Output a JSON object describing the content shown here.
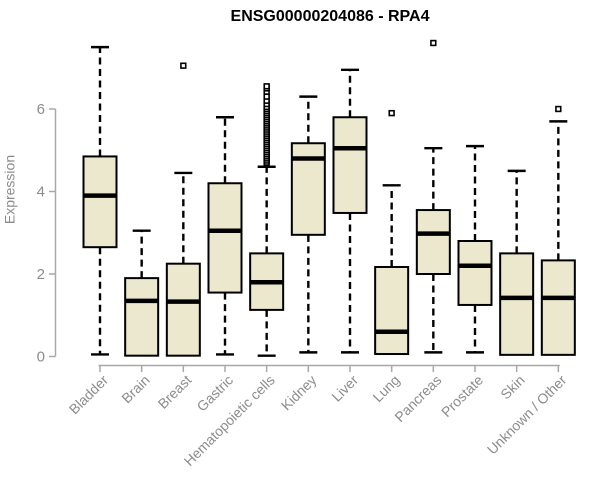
{
  "chart_data": {
    "type": "boxplot",
    "title": "ENSG00000204086 - RPA4",
    "xlabel": "",
    "ylabel": "Expression",
    "ylim": [
      0,
      7.7
    ],
    "yticks": [
      0,
      2,
      4,
      6
    ],
    "grid": false,
    "legend": "none",
    "outlier_marker": "small-open-square",
    "colors": {
      "box_fill": "#ECE8CD",
      "box_border": "#000000",
      "median": "#000000",
      "whisker": "#000000",
      "axis_line": "#A8A8A8",
      "axis_text": "#8C8C8C",
      "title_text": "#000000",
      "outlier_fill": "#FFFFFF",
      "outlier_border": "#000000"
    },
    "categories": [
      "Bladder",
      "Brain",
      "Breast",
      "Gastric",
      "Hematopoietic cells",
      "Kidney",
      "Liver",
      "Lung",
      "Pancreas",
      "Prostate",
      "Skin",
      "Unknown / Other"
    ],
    "series": [
      {
        "name": "Bladder",
        "min": 0.05,
        "q1": 2.65,
        "median": 3.9,
        "q3": 4.85,
        "max": 7.5,
        "outliers": []
      },
      {
        "name": "Brain",
        "min": 0.0,
        "q1": 0.02,
        "median": 1.35,
        "q3": 1.9,
        "max": 3.05,
        "outliers": []
      },
      {
        "name": "Breast",
        "min": 0.0,
        "q1": 0.02,
        "median": 1.33,
        "q3": 2.25,
        "max": 4.45,
        "outliers": [
          7.05
        ]
      },
      {
        "name": "Gastric",
        "min": 0.05,
        "q1": 1.55,
        "median": 3.05,
        "q3": 4.2,
        "max": 5.8,
        "outliers": []
      },
      {
        "name": "Hematopoietic cells",
        "min": 0.02,
        "q1": 1.13,
        "median": 1.8,
        "q3": 2.5,
        "max": 4.6,
        "outliers": [
          4.7,
          4.75,
          4.8,
          4.85,
          4.9,
          4.95,
          5.0,
          5.05,
          5.1,
          5.15,
          5.2,
          5.25,
          5.3,
          5.35,
          5.4,
          5.45,
          5.5,
          5.55,
          5.6,
          5.65,
          5.7,
          5.75,
          5.8,
          5.85,
          5.9,
          5.95,
          6.0,
          6.05,
          6.12,
          6.2,
          6.3,
          6.42,
          6.5,
          6.55
        ]
      },
      {
        "name": "Kidney",
        "min": 0.1,
        "q1": 2.95,
        "median": 4.8,
        "q3": 5.17,
        "max": 6.3,
        "outliers": []
      },
      {
        "name": "Liver",
        "min": 0.1,
        "q1": 3.48,
        "median": 5.05,
        "q3": 5.8,
        "max": 6.95,
        "outliers": []
      },
      {
        "name": "Lung",
        "min": 0.05,
        "q1": 0.06,
        "median": 0.6,
        "q3": 2.17,
        "max": 4.15,
        "outliers": [
          5.9
        ]
      },
      {
        "name": "Pancreas",
        "min": 0.1,
        "q1": 2.0,
        "median": 2.98,
        "q3": 3.55,
        "max": 5.05,
        "outliers": [
          7.6
        ]
      },
      {
        "name": "Prostate",
        "min": 0.1,
        "q1": 1.25,
        "median": 2.2,
        "q3": 2.8,
        "max": 5.1,
        "outliers": []
      },
      {
        "name": "Skin",
        "min": 0.04,
        "q1": 0.04,
        "median": 1.42,
        "q3": 2.5,
        "max": 4.5,
        "outliers": []
      },
      {
        "name": "Unknown / Other",
        "min": 0.04,
        "q1": 0.04,
        "median": 1.42,
        "q3": 2.33,
        "max": 5.7,
        "outliers": [
          6.0
        ]
      }
    ]
  }
}
